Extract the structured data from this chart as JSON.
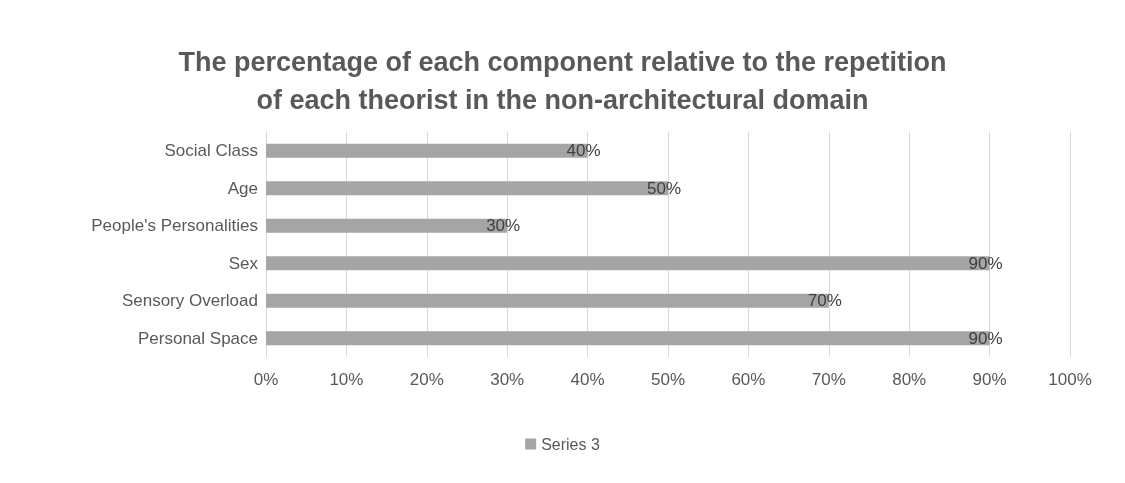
{
  "chart_data": {
    "type": "bar",
    "orientation": "horizontal",
    "title": "The percentage of each component relative to the repetition\nof each theorist in the non-architectural domain",
    "categories": [
      "Social Class",
      "Age",
      "People's Personalities",
      "Sex",
      "Sensory Overload",
      "Personal Space"
    ],
    "series": [
      {
        "name": "Series 3",
        "color": "#a5a5a5",
        "values": [
          40,
          50,
          30,
          90,
          70,
          90
        ],
        "value_labels": [
          "40%",
          "50%",
          "30%",
          "90%",
          "70%",
          "90%"
        ]
      }
    ],
    "xlim": [
      0,
      100
    ],
    "xticks": [
      {
        "value": 0,
        "label": "0%"
      },
      {
        "value": 10,
        "label": "10%"
      },
      {
        "value": 20,
        "label": "20%"
      },
      {
        "value": 30,
        "label": "30%"
      },
      {
        "value": 40,
        "label": "40%"
      },
      {
        "value": 50,
        "label": "50%"
      },
      {
        "value": 60,
        "label": "60%"
      },
      {
        "value": 70,
        "label": "70%"
      },
      {
        "value": 80,
        "label": "80%"
      },
      {
        "value": 90,
        "label": "90%"
      },
      {
        "value": 100,
        "label": "100%"
      }
    ],
    "grid": "x",
    "legend": "bottom"
  }
}
